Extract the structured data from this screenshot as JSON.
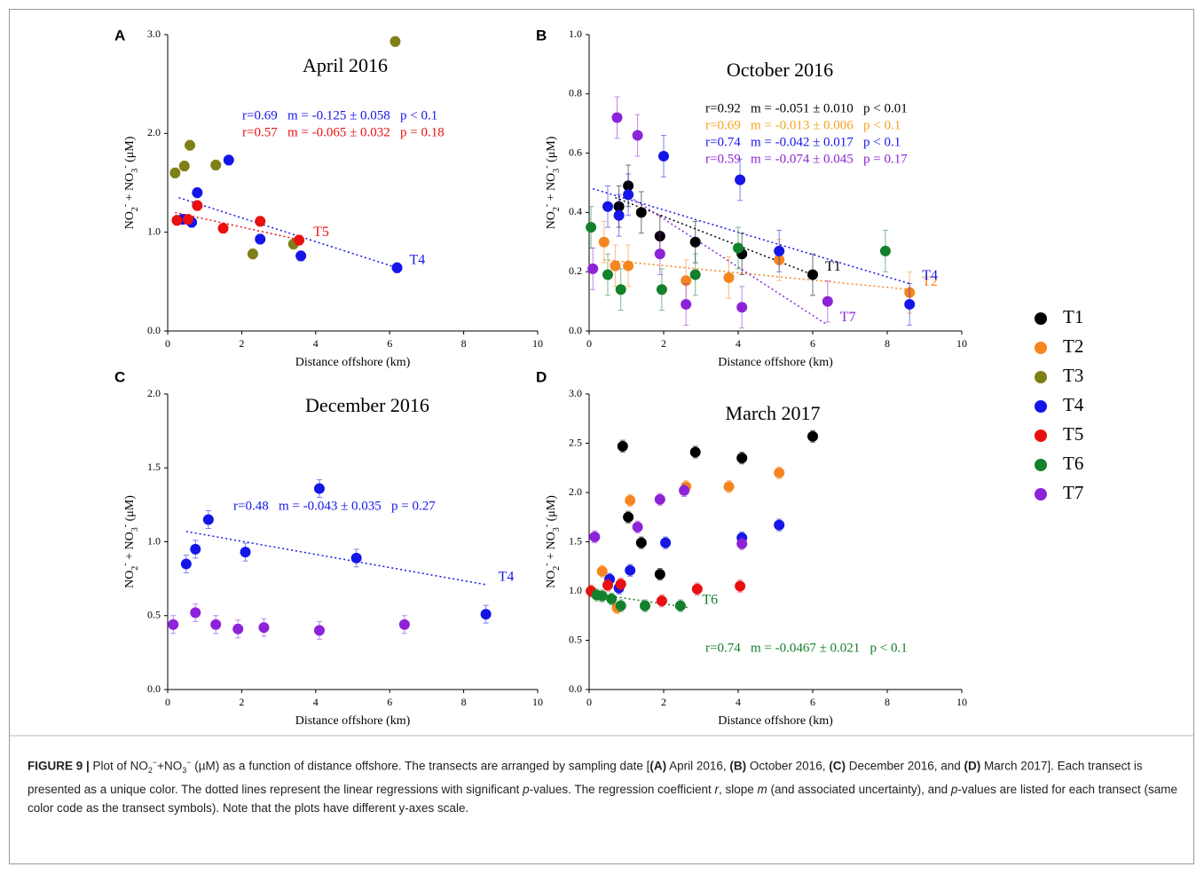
{
  "chart_data": [
    {
      "type": "scatter",
      "panel": "A",
      "title": "April 2016",
      "xlabel": "Distance offshore (km)",
      "ylabel": [
        {
          "text": "NO"
        },
        {
          "text": "2",
          "style": "sub"
        },
        {
          "text": "-",
          "style": "sup"
        },
        {
          "text": " + NO"
        },
        {
          "text": "3",
          "style": "sub"
        },
        {
          "text": "-",
          "style": "sup"
        },
        {
          "text": " (μM)"
        }
      ],
      "xlim": [
        0,
        10
      ],
      "ylim": [
        0,
        3
      ],
      "xticks": [
        0,
        2,
        4,
        6,
        8,
        10
      ],
      "yticks": [
        {
          "value": 0,
          "label": "0.0"
        },
        {
          "value": 1,
          "label": "1.0"
        },
        {
          "value": 2,
          "label": "2.0"
        },
        {
          "value": 3,
          "label": "3.0"
        }
      ],
      "series": [
        {
          "name": "T3",
          "color": "#7f7f17",
          "x": [
            0.2,
            0.45,
            0.6,
            1.3,
            2.3,
            3.4,
            6.15
          ],
          "values": [
            1.6,
            1.67,
            1.88,
            1.68,
            0.78,
            0.88,
            2.93
          ],
          "errors": [
            0.05,
            0.05,
            0.05,
            0.05,
            0.05,
            0.05,
            0.05
          ]
        },
        {
          "name": "T4",
          "color": "#1515e8",
          "x": [
            0.4,
            0.65,
            0.8,
            1.65,
            2.5,
            3.6,
            6.2
          ],
          "values": [
            1.13,
            1.1,
            1.4,
            1.73,
            0.93,
            0.76,
            0.64
          ],
          "errors": [
            0.05,
            0.05,
            0.05,
            0.05,
            0.05,
            0.05,
            0.05
          ]
        },
        {
          "name": "T5",
          "color": "#e81010",
          "x": [
            0.25,
            0.55,
            0.8,
            1.5,
            2.5,
            3.55
          ],
          "values": [
            1.12,
            1.13,
            1.27,
            1.04,
            1.11,
            0.92
          ],
          "errors": [
            0.05,
            0.05,
            0.05,
            0.05,
            0.05,
            0.05
          ]
        }
      ],
      "trendlines": [
        {
          "label": "T4",
          "color": "#1515e8",
          "x": [
            0.3,
            6.2
          ],
          "values": [
            1.35,
            0.64
          ]
        },
        {
          "label": "T5",
          "color": "#e81010",
          "x": [
            0.2,
            3.6
          ],
          "values": [
            1.2,
            0.92
          ]
        }
      ],
      "annotations": [
        {
          "text": "r=0.69   m = -0.125 ± 0.058   p < 0.1",
          "color": "#1515e8"
        },
        {
          "text": "r=0.57   m = -0.065 ± 0.032   p = 0.18",
          "color": "#e81010"
        }
      ]
    },
    {
      "type": "scatter",
      "panel": "B",
      "title": "October 2016",
      "xlabel": "Distance offshore (km)",
      "ylabel": [
        {
          "text": "NO"
        },
        {
          "text": "2",
          "style": "sub"
        },
        {
          "text": "-",
          "style": "sup"
        },
        {
          "text": " + NO"
        },
        {
          "text": "3",
          "style": "sub"
        },
        {
          "text": "-",
          "style": "sup"
        },
        {
          "text": " (μM)"
        }
      ],
      "xlim": [
        0,
        10
      ],
      "ylim": [
        0,
        1
      ],
      "xticks": [
        0,
        2,
        4,
        6,
        8,
        10
      ],
      "yticks": [
        {
          "value": 0,
          "label": "0.0"
        },
        0.2,
        0.4,
        0.6,
        0.8,
        {
          "value": 1,
          "label": "1.0"
        }
      ],
      "series": [
        {
          "name": "T1",
          "color": "#000000",
          "x": [
            0.8,
            1.05,
            1.4,
            1.9,
            2.85,
            4.1,
            6.0
          ],
          "values": [
            0.42,
            0.49,
            0.4,
            0.32,
            0.3,
            0.26,
            0.19
          ],
          "errors": [
            0.07,
            0.07,
            0.07,
            0.07,
            0.07,
            0.07,
            0.07
          ]
        },
        {
          "name": "T2",
          "color": "#f5851f",
          "x": [
            0.4,
            0.7,
            1.05,
            2.6,
            3.75,
            5.1,
            8.6
          ],
          "values": [
            0.3,
            0.22,
            0.22,
            0.17,
            0.18,
            0.24,
            0.13
          ],
          "errors": [
            0.07,
            0.07,
            0.07,
            0.07,
            0.07,
            0.07,
            0.07
          ]
        },
        {
          "name": "T4",
          "color": "#1515e8",
          "x": [
            0.5,
            0.8,
            1.05,
            2.0,
            4.05,
            5.1,
            8.6
          ],
          "values": [
            0.42,
            0.39,
            0.46,
            0.59,
            0.51,
            0.27,
            0.09
          ],
          "errors": [
            0.07,
            0.07,
            0.07,
            0.07,
            0.07,
            0.07,
            0.07
          ]
        },
        {
          "name": "T6",
          "color": "#13802b",
          "x": [
            0.05,
            0.5,
            0.85,
            1.95,
            2.85,
            4.0,
            7.95
          ],
          "values": [
            0.35,
            0.19,
            0.14,
            0.14,
            0.19,
            0.28,
            0.27
          ],
          "errors": [
            0.07,
            0.07,
            0.07,
            0.07,
            0.07,
            0.07,
            0.07
          ]
        },
        {
          "name": "T7",
          "color": "#8d23d8",
          "x": [
            0.1,
            0.75,
            1.3,
            1.9,
            2.6,
            4.1,
            6.4
          ],
          "values": [
            0.21,
            0.72,
            0.66,
            0.26,
            0.09,
            0.08,
            0.1
          ],
          "errors": [
            0.07,
            0.07,
            0.07,
            0.07,
            0.07,
            0.07,
            0.07
          ]
        }
      ],
      "trendlines": [
        {
          "label": "T1",
          "color": "#000000",
          "x": [
            0.7,
            6.0
          ],
          "values": [
            0.45,
            0.19
          ]
        },
        {
          "label": "T2",
          "color": "#f5851f",
          "x": [
            0.4,
            8.6
          ],
          "values": [
            0.24,
            0.14
          ]
        },
        {
          "label": "T4",
          "color": "#1515e8",
          "x": [
            0.1,
            8.6
          ],
          "values": [
            0.48,
            0.16
          ]
        },
        {
          "label": "T7",
          "color": "#8d23d8",
          "x": [
            1.0,
            6.4
          ],
          "values": [
            0.46,
            0.02
          ]
        }
      ],
      "annotations": [
        {
          "text": "r=0.92   m = -0.051 ± 0.010   p < 0.01",
          "color": "#000000"
        },
        {
          "text": "r=0.69   m = -0.013 ± 0.006   p < 0.1",
          "color": "#f5a21f"
        },
        {
          "text": "r=0.74   m = -0.042 ± 0.017   p < 0.1",
          "color": "#1515e8"
        },
        {
          "text": "r=0.59   m = -0.074 ± 0.045   p = 0.17",
          "color": "#8d23d8"
        }
      ]
    },
    {
      "type": "scatter",
      "panel": "C",
      "title": "December 2016",
      "xlabel": "Distance offshore (km)",
      "ylabel": [
        {
          "text": "NO"
        },
        {
          "text": "2",
          "style": "sub"
        },
        {
          "text": "-",
          "style": "sup"
        },
        {
          "text": " + NO"
        },
        {
          "text": "3",
          "style": "sub"
        },
        {
          "text": "-",
          "style": "sup"
        },
        {
          "text": " (μM)"
        }
      ],
      "xlim": [
        0,
        10
      ],
      "ylim": [
        0,
        2
      ],
      "xticks": [
        0,
        2,
        4,
        6,
        8,
        10
      ],
      "yticks": [
        {
          "value": 0,
          "label": "0.0"
        },
        0.5,
        {
          "value": 1,
          "label": "1.0"
        },
        1.5,
        {
          "value": 2,
          "label": "2.0"
        }
      ],
      "series": [
        {
          "name": "T4",
          "color": "#1515e8",
          "x": [
            0.5,
            0.75,
            1.1,
            2.1,
            4.1,
            5.1,
            8.6
          ],
          "values": [
            0.85,
            0.95,
            1.15,
            0.93,
            1.36,
            0.89,
            0.51
          ],
          "errors": [
            0.06,
            0.06,
            0.06,
            0.06,
            0.06,
            0.06,
            0.06
          ]
        },
        {
          "name": "T7",
          "color": "#8d23d8",
          "x": [
            0.15,
            0.75,
            1.3,
            1.9,
            2.6,
            4.1,
            6.4
          ],
          "values": [
            0.44,
            0.52,
            0.44,
            0.41,
            0.42,
            0.4,
            0.44
          ],
          "errors": [
            0.06,
            0.06,
            0.06,
            0.06,
            0.06,
            0.06,
            0.06
          ]
        }
      ],
      "trendlines": [
        {
          "label": "T4",
          "color": "#1515e8",
          "x": [
            0.5,
            8.6
          ],
          "values": [
            1.07,
            0.71
          ]
        }
      ],
      "annotations": [
        {
          "text": "r=0.48   m = -0.043 ± 0.035   p = 0.27",
          "color": "#1515e8"
        }
      ]
    },
    {
      "type": "scatter",
      "panel": "D",
      "title": "March 2017",
      "xlabel": "Distance offshore (km)",
      "ylabel": [
        {
          "text": "NO"
        },
        {
          "text": "2",
          "style": "sub"
        },
        {
          "text": "-",
          "style": "sup"
        },
        {
          "text": " + NO"
        },
        {
          "text": "3",
          "style": "sub"
        },
        {
          "text": "-",
          "style": "sup"
        },
        {
          "text": " (μM)"
        }
      ],
      "xlim": [
        0,
        10
      ],
      "ylim": [
        0,
        3
      ],
      "xticks": [
        0,
        2,
        4,
        6,
        8,
        10
      ],
      "yticks": [
        {
          "value": 0,
          "label": "0.0"
        },
        0.5,
        {
          "value": 1,
          "label": "1.0"
        },
        1.5,
        {
          "value": 2,
          "label": "2.0"
        },
        2.5,
        {
          "value": 3,
          "label": "3.0"
        }
      ],
      "series": [
        {
          "name": "T1",
          "color": "#000000",
          "x": [
            0.9,
            1.05,
            1.4,
            1.9,
            2.85,
            4.1,
            6.0
          ],
          "values": [
            2.47,
            1.75,
            1.49,
            1.17,
            2.41,
            2.35,
            2.57
          ],
          "errors": [
            0.06,
            0.06,
            0.06,
            0.06,
            0.06,
            0.06,
            0.06
          ]
        },
        {
          "name": "T2",
          "color": "#f5851f",
          "x": [
            0.35,
            0.75,
            1.1,
            2.6,
            3.75,
            5.1
          ],
          "values": [
            1.2,
            0.83,
            1.92,
            2.06,
            2.06,
            2.2
          ],
          "errors": [
            0.06,
            0.06,
            0.06,
            0.06,
            0.06,
            0.06
          ]
        },
        {
          "name": "T4",
          "color": "#1515e8",
          "x": [
            0.55,
            0.8,
            1.1,
            2.05,
            4.1,
            5.1
          ],
          "values": [
            1.12,
            1.03,
            1.21,
            1.49,
            1.54,
            1.67
          ],
          "errors": [
            0.06,
            0.06,
            0.06,
            0.06,
            0.06,
            0.06
          ]
        },
        {
          "name": "T5",
          "color": "#e81010",
          "x": [
            0.05,
            0.5,
            0.85,
            1.95,
            2.9,
            4.05
          ],
          "values": [
            1.0,
            1.06,
            1.07,
            0.9,
            1.02,
            1.05
          ],
          "errors": [
            0.06,
            0.06,
            0.06,
            0.06,
            0.06,
            0.06
          ]
        },
        {
          "name": "T6",
          "color": "#13802b",
          "x": [
            0.2,
            0.35,
            0.6,
            0.85,
            1.5,
            2.45
          ],
          "values": [
            0.96,
            0.95,
            0.92,
            0.85,
            0.85,
            0.85
          ],
          "errors": [
            0.06,
            0.06,
            0.06,
            0.06,
            0.06,
            0.06
          ]
        },
        {
          "name": "T7",
          "color": "#8d23d8",
          "x": [
            0.15,
            1.3,
            1.9,
            2.55,
            4.1
          ],
          "values": [
            1.55,
            1.65,
            1.93,
            2.02,
            1.48
          ],
          "errors": [
            0.06,
            0.06,
            0.06,
            0.06,
            0.06
          ]
        }
      ],
      "trendlines": [
        {
          "label": "T6",
          "color": "#13802b",
          "x": [
            0.0,
            2.7
          ],
          "values": [
            0.98,
            0.83
          ]
        }
      ],
      "annotations": [
        {
          "text": "r=0.74   m = -0.0467 ± 0.021   p < 0.1",
          "color": "#13802b"
        }
      ]
    }
  ],
  "legend": [
    {
      "name": "T1",
      "color": "#000000"
    },
    {
      "name": "T2",
      "color": "#f5851f"
    },
    {
      "name": "T3",
      "color": "#7f7f17"
    },
    {
      "name": "T4",
      "color": "#1515e8"
    },
    {
      "name": "T5",
      "color": "#e81010"
    },
    {
      "name": "T6",
      "color": "#13802b"
    },
    {
      "name": "T7",
      "color": "#8d23d8"
    }
  ],
  "caption": [
    {
      "text": "FIGURE 9 |",
      "style": "bold"
    },
    {
      "text": " Plot of NO"
    },
    {
      "text": "2",
      "style": "sub"
    },
    {
      "text": "−",
      "style": "sup"
    },
    {
      "text": "+NO"
    },
    {
      "text": "3",
      "style": "sub"
    },
    {
      "text": "−",
      "style": "sup"
    },
    {
      "text": " (µM) as a function of distance offshore. The transects are arranged by sampling date ["
    },
    {
      "text": "(A)",
      "style": "bold"
    },
    {
      "text": " April 2016, "
    },
    {
      "text": "(B)",
      "style": "bold"
    },
    {
      "text": " October 2016, "
    },
    {
      "text": "(C)",
      "style": "bold"
    },
    {
      "text": " December 2016, and "
    },
    {
      "text": "(D)",
      "style": "bold"
    },
    {
      "text": " March 2017]. Each transect is presented as a unique color. The dotted lines represent the linear regressions with significant "
    },
    {
      "text": "p",
      "style": "italic"
    },
    {
      "text": "-values. The regression coefficient "
    },
    {
      "text": "r",
      "style": "italic"
    },
    {
      "text": ", slope "
    },
    {
      "text": "m",
      "style": "italic"
    },
    {
      "text": " (and associated uncertainty), and "
    },
    {
      "text": "p",
      "style": "italic"
    },
    {
      "text": "-values are listed for each transect (same color code as the transect symbols). Note that the plots have different y-axes scale."
    }
  ]
}
